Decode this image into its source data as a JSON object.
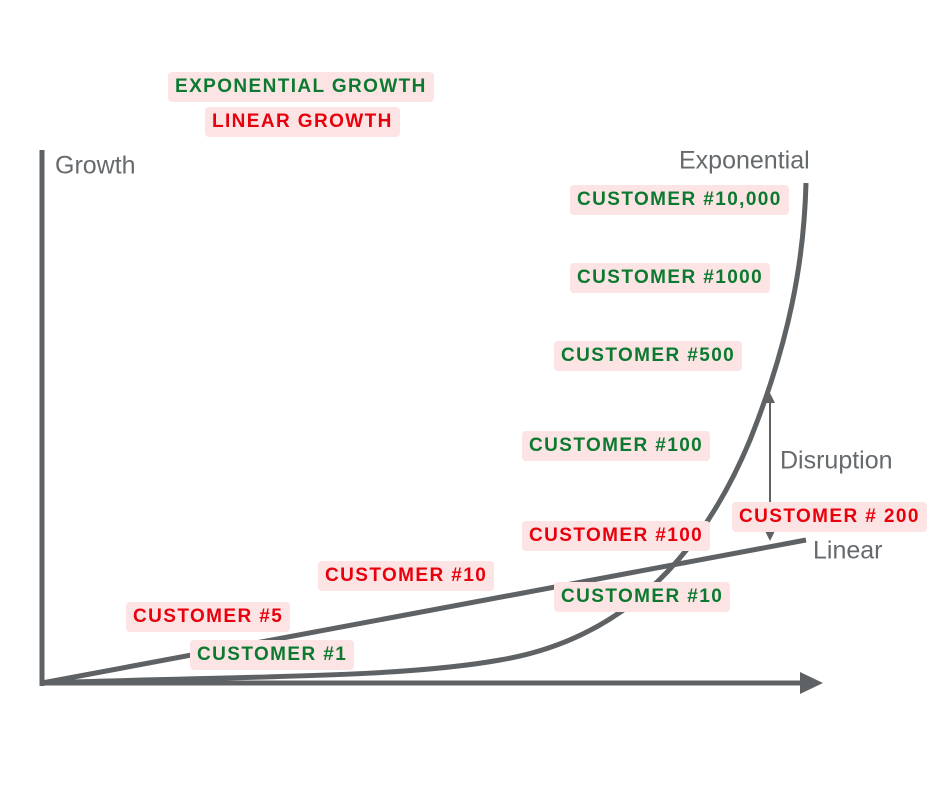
{
  "legend": [
    {
      "text": "EXPONENTIAL GROWTH",
      "color": "#0b7a30"
    },
    {
      "text": "LINEAR GROWTH",
      "color": "#e8000d"
    }
  ],
  "axis": {
    "y_label": "Growth"
  },
  "curves": {
    "exponential": "Exponential",
    "linear": "Linear"
  },
  "annotation": "Disruption",
  "labels": [
    {
      "text": "CUSTOMER #10,000",
      "color": "#0b7a30"
    },
    {
      "text": "CUSTOMER #1000",
      "color": "#0b7a30"
    },
    {
      "text": "CUSTOMER #500",
      "color": "#0b7a30"
    },
    {
      "text": "CUSTOMER #100",
      "color": "#0b7a30"
    },
    {
      "text": "CUSTOMER # 200",
      "color": "#e8000d"
    },
    {
      "text": "CUSTOMER #100",
      "color": "#e8000d"
    },
    {
      "text": "CUSTOMER #10",
      "color": "#e8000d"
    },
    {
      "text": "CUSTOMER #10",
      "color": "#0b7a30"
    },
    {
      "text": "CUSTOMER #5",
      "color": "#e8000d"
    },
    {
      "text": "CUSTOMER #1",
      "color": "#0b7a30"
    }
  ]
}
